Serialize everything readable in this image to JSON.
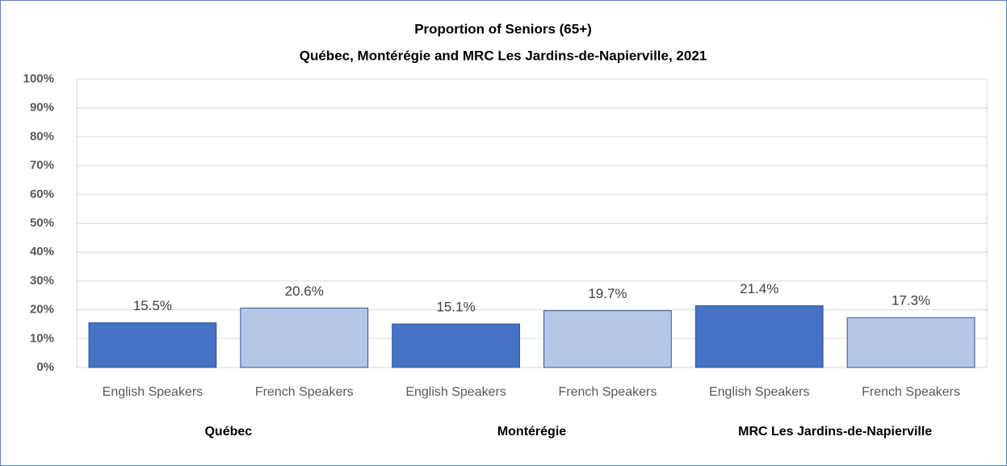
{
  "chart_data": {
    "type": "bar",
    "title": "Proportion of Seniors (65+)",
    "subtitle": "Québec, Montérégie and MRC Les Jardins-de-Napierville,  2021",
    "categories": [
      "English Speakers",
      "French Speakers",
      "English Speakers",
      "French Speakers",
      "English Speakers",
      "French Speakers"
    ],
    "groups": [
      "Québec",
      "Montérégie",
      "MRC Les Jardins-de-Napierville"
    ],
    "values": [
      15.5,
      20.6,
      15.1,
      19.7,
      21.4,
      17.3
    ],
    "value_labels": [
      "15.5%",
      "20.6%",
      "15.1%",
      "19.7%",
      "21.4%",
      "17.3%"
    ],
    "colors": [
      "#4472c4",
      "#b4c7e7",
      "#4472c4",
      "#b4c7e7",
      "#4472c4",
      "#b4c7e7"
    ],
    "ylim": [
      0,
      100
    ],
    "yticks": [
      {
        "value": 0,
        "label": "0%"
      },
      {
        "value": 10,
        "label": "10%"
      },
      {
        "value": 20,
        "label": "20%"
      },
      {
        "value": 30,
        "label": "30%"
      },
      {
        "value": 40,
        "label": "40%"
      },
      {
        "value": 50,
        "label": "50%"
      },
      {
        "value": 60,
        "label": "60%"
      },
      {
        "value": 70,
        "label": "70%"
      },
      {
        "value": 80,
        "label": "80%"
      },
      {
        "value": 90,
        "label": "90%"
      },
      {
        "value": 100,
        "label": "100%"
      }
    ],
    "grid": true
  }
}
